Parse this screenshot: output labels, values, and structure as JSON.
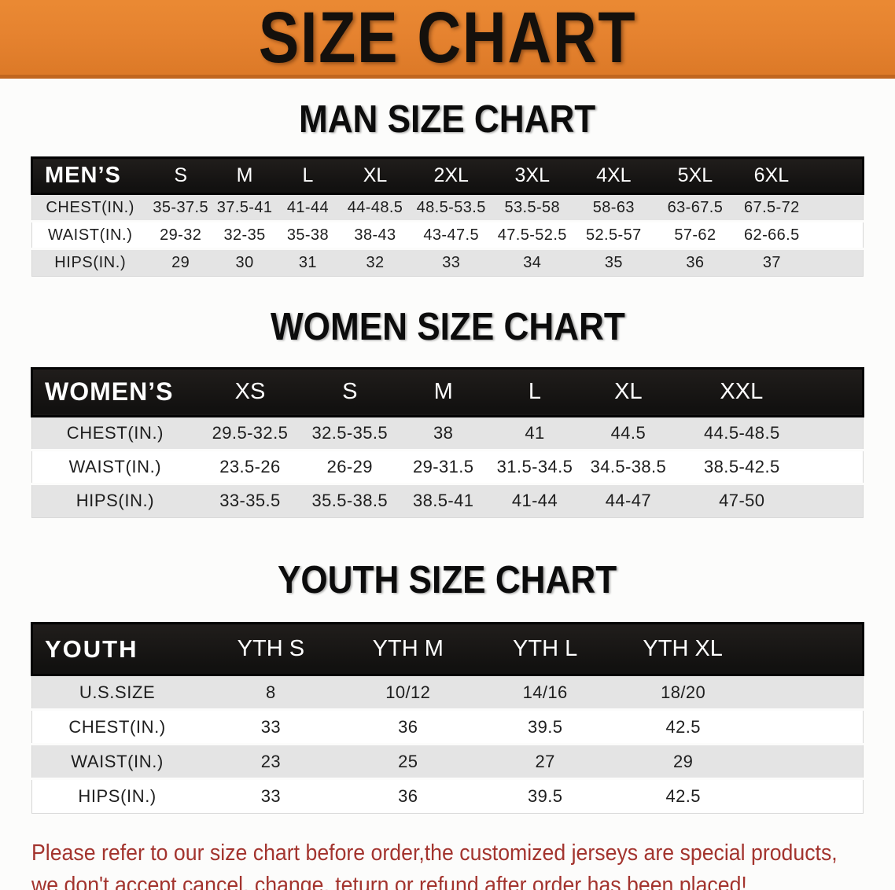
{
  "banner": {
    "title": "SIZE CHART"
  },
  "colors": {
    "banner_orange": "#e5822f",
    "banner_edge": "#c1661f",
    "header_black": "#161412",
    "row_gray": "#e4e4e4",
    "note_red": "#a3342e"
  },
  "sections": {
    "men": {
      "heading": "MAN SIZE CHART",
      "header": [
        "MEN’S",
        "S",
        "M",
        "L",
        "XL",
        "2XL",
        "3XL",
        "4XL",
        "5XL",
        "6XL"
      ],
      "rows": [
        {
          "label": "CHEST(IN.)",
          "values": [
            "35-37.5",
            "37.5-41",
            "41-44",
            "44-48.5",
            "48.5-53.5",
            "53.5-58",
            "58-63",
            "63-67.5",
            "67.5-72"
          ]
        },
        {
          "label": "WAIST(IN.)",
          "values": [
            "29-32",
            "32-35",
            "35-38",
            "38-43",
            "43-47.5",
            "47.5-52.5",
            "52.5-57",
            "57-62",
            "62-66.5"
          ]
        },
        {
          "label": "HIPS(IN.)",
          "values": [
            "29",
            "30",
            "31",
            "32",
            "33",
            "34",
            "35",
            "36",
            "37"
          ]
        }
      ]
    },
    "women": {
      "heading": "WOMEN SIZE CHART",
      "header": [
        "WOMEN’S",
        "XS",
        "S",
        "M",
        "L",
        "XL",
        "XXL"
      ],
      "rows": [
        {
          "label": "CHEST(IN.)",
          "values": [
            "29.5-32.5",
            "32.5-35.5",
            "38",
            "41",
            "44.5",
            "44.5-48.5"
          ]
        },
        {
          "label": "WAIST(IN.)",
          "values": [
            "23.5-26",
            "26-29",
            "29-31.5",
            "31.5-34.5",
            "34.5-38.5",
            "38.5-42.5"
          ]
        },
        {
          "label": "HIPS(IN.)",
          "values": [
            "33-35.5",
            "35.5-38.5",
            "38.5-41",
            "41-44",
            "44-47",
            "47-50"
          ]
        }
      ]
    },
    "youth": {
      "heading": "YOUTH SIZE CHART",
      "header": [
        "YOUTH",
        "YTH S",
        "YTH M",
        "YTH L",
        "YTH XL"
      ],
      "rows": [
        {
          "label": "U.S.SIZE",
          "values": [
            "8",
            "10/12",
            "14/16",
            "18/20"
          ]
        },
        {
          "label": "CHEST(IN.)",
          "values": [
            "33",
            "36",
            "39.5",
            "42.5"
          ]
        },
        {
          "label": "WAIST(IN.)",
          "values": [
            "23",
            "25",
            "27",
            "29"
          ]
        },
        {
          "label": "HIPS(IN.)",
          "values": [
            "33",
            "36",
            "39.5",
            "42.5"
          ]
        }
      ]
    }
  },
  "note": {
    "line1": "Please refer to our size chart before order,the customized jerseys are special products,",
    "line2": "we don't accept cancel, change, teturn or refund after order has been placed!"
  }
}
